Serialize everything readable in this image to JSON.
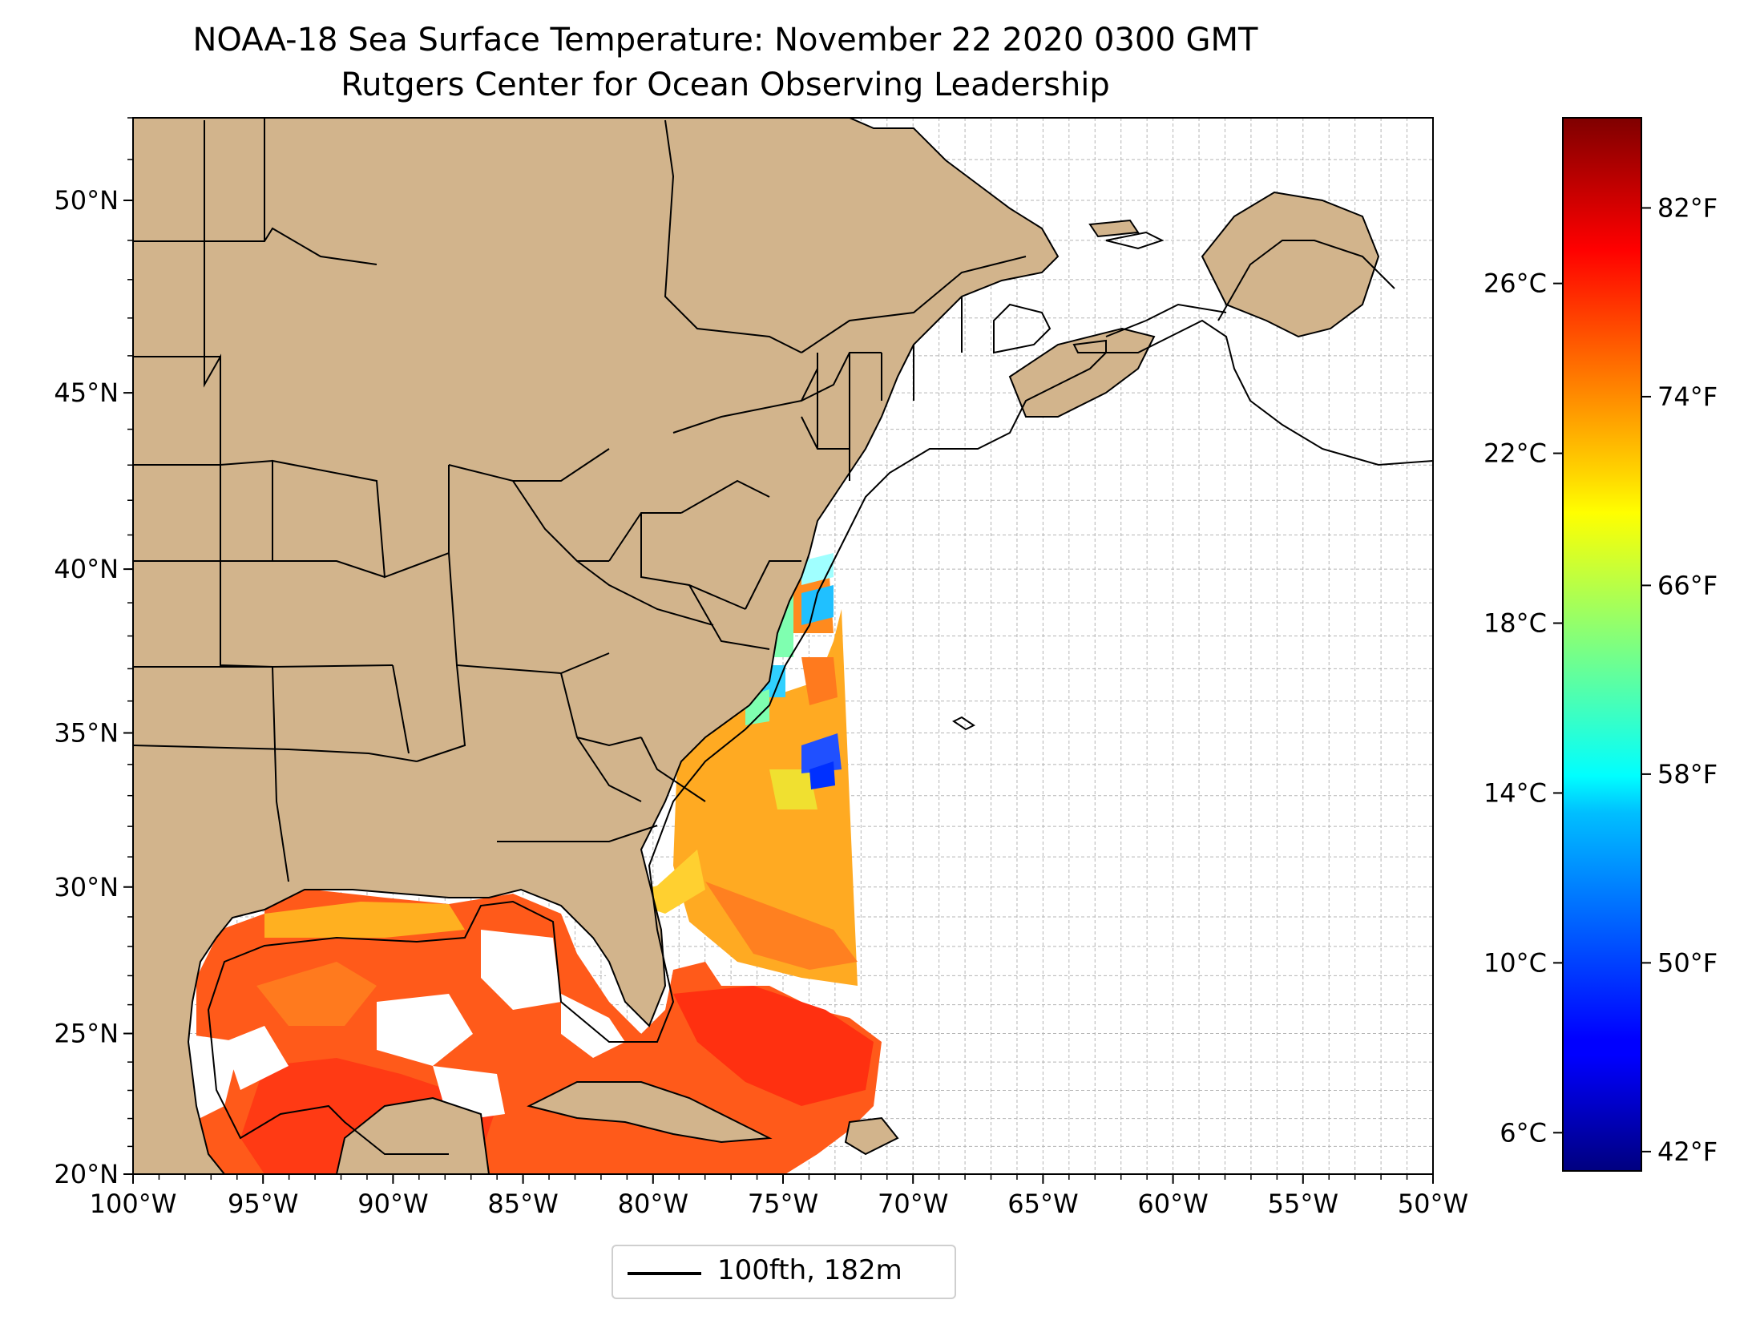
{
  "title": "NOAA-18 Sea Surface Temperature: November 22 2020 0300 GMT",
  "subtitle": "Rutgers Center for Ocean Observing Leadership",
  "legend": {
    "label": "100fth, 182m"
  },
  "map": {
    "lon_range": [
      -100,
      -50
    ],
    "lat_range": [
      20,
      52
    ],
    "x_ticks": [
      "100°W",
      "95°W",
      "90°W",
      "85°W",
      "80°W",
      "75°W",
      "70°W",
      "65°W",
      "60°W",
      "55°W",
      "50°W"
    ],
    "y_ticks": [
      "20°N",
      "25°N",
      "30°N",
      "35°N",
      "40°N",
      "45°N",
      "50°N"
    ],
    "land_color": "#d2b48c",
    "lake_no_data_color": "#9ab8e4",
    "grid": true
  },
  "colorbar": {
    "colormap": "jet",
    "celsius_ticks": [
      "6°C",
      "10°C",
      "14°C",
      "18°C",
      "22°C",
      "26°C"
    ],
    "fahrenheit_ticks": [
      "42°F",
      "50°F",
      "58°F",
      "66°F",
      "74°F",
      "82°F"
    ]
  },
  "chart_data": {
    "type": "heatmap",
    "title": "NOAA-18 Sea Surface Temperature: November 22 2020 0300 GMT",
    "subtitle": "Rutgers Center for Ocean Observing Leadership",
    "x_range": [
      -100,
      -50
    ],
    "y_range": [
      20,
      52
    ],
    "value_range_celsius": [
      5.1,
      29.9
    ],
    "colorbar_label_units": [
      "°C",
      "°F"
    ],
    "grid": true,
    "legend_position": "bottom-center"
  }
}
